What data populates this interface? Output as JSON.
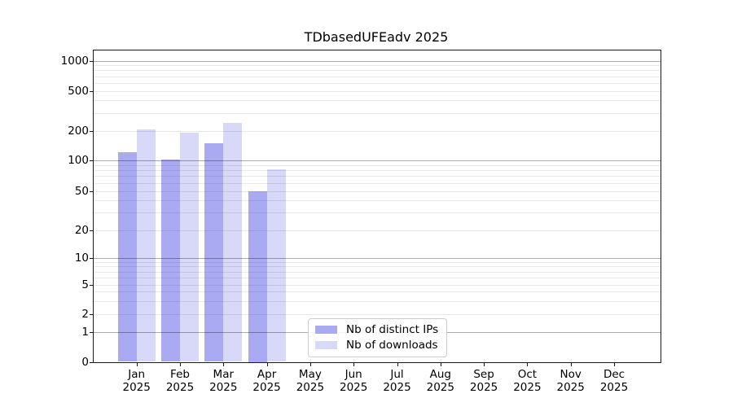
{
  "title": "TDbasedUFEadv 2025",
  "colors": {
    "distinct_ips_bar": "#aaaaf2",
    "downloads_bar": "#d8d8f9",
    "axis": "#1a1a1a",
    "grid_major": "#aaaaaa",
    "grid_minor": "#e8e8e8",
    "background": "#ffffff"
  },
  "y_axis": {
    "tick_labels": [
      "1000",
      "500",
      "200",
      "100",
      "50",
      "20",
      "10",
      "5",
      "2",
      "1",
      "0"
    ],
    "tick_values": [
      1000,
      500,
      200,
      100,
      50,
      20,
      10,
      5,
      2,
      1,
      0
    ],
    "major_values": [
      1,
      10,
      100,
      1000
    ],
    "minor_unlabeled_values": [
      3,
      4,
      6,
      7,
      8,
      9,
      30,
      40,
      60,
      70,
      80,
      90,
      300,
      400,
      600,
      700,
      800,
      900
    ]
  },
  "x_axis": {
    "months": [
      {
        "line1": "Jan",
        "line2": "2025"
      },
      {
        "line1": "Feb",
        "line2": "2025"
      },
      {
        "line1": "Mar",
        "line2": "2025"
      },
      {
        "line1": "Apr",
        "line2": "2025"
      },
      {
        "line1": "May",
        "line2": "2025"
      },
      {
        "line1": "Jun",
        "line2": "2025"
      },
      {
        "line1": "Jul",
        "line2": "2025"
      },
      {
        "line1": "Aug",
        "line2": "2025"
      },
      {
        "line1": "Sep",
        "line2": "2025"
      },
      {
        "line1": "Oct",
        "line2": "2025"
      },
      {
        "line1": "Nov",
        "line2": "2025"
      },
      {
        "line1": "Dec",
        "line2": "2025"
      }
    ]
  },
  "legend": {
    "items": [
      {
        "label": "Nb of distinct IPs",
        "color": "#aaaaf2",
        "series_key": "distinct-ips"
      },
      {
        "label": "Nb of downloads",
        "color": "#d8d8f9",
        "series_key": "downloads"
      }
    ]
  },
  "chart_data": {
    "type": "bar",
    "title": "TDbasedUFEadv 2025",
    "categories": [
      "Jan 2025",
      "Feb 2025",
      "Mar 2025",
      "Apr 2025",
      "May 2025",
      "Jun 2025",
      "Jul 2025",
      "Aug 2025",
      "Sep 2025",
      "Oct 2025",
      "Nov 2025",
      "Dec 2025"
    ],
    "series": [
      {
        "name": "Nb of distinct IPs",
        "values": [
          121,
          102,
          148,
          50,
          null,
          null,
          null,
          null,
          null,
          null,
          null,
          null
        ]
      },
      {
        "name": "Nb of downloads",
        "values": [
          204,
          190,
          237,
          81,
          null,
          null,
          null,
          null,
          null,
          null,
          null,
          null
        ]
      }
    ],
    "ylim": [
      0,
      1000
    ],
    "yscale": "log-like (0,1,2,5,10,20,50,100,200,500,1000)",
    "yticks": [
      0,
      1,
      2,
      5,
      10,
      20,
      50,
      100,
      200,
      500,
      1000
    ],
    "grid": true,
    "legend_position": "lower center"
  }
}
